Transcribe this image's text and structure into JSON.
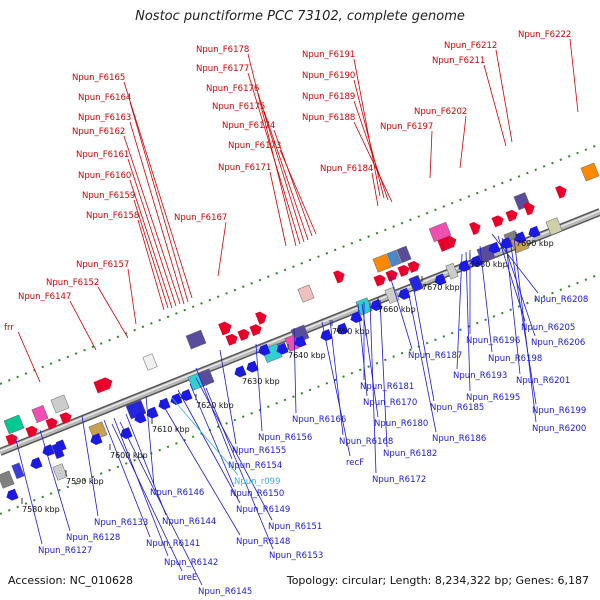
{
  "title": "Nostoc punctiforme PCC 73102, complete genome",
  "footer": {
    "accession": "Accession: NC_010628",
    "topology": "Topology: circular; Length: 8,234,322 bp; Genes: 6,187"
  },
  "colors": {
    "forward_label": "#d40000",
    "reverse_label": "#1a1adb",
    "rna_label": "#34b4e6",
    "backbone": "#9a9a9a",
    "dots": "#2b8a2b"
  },
  "kbp_ticks": [
    "7580 kbp",
    "7590 kbp",
    "7600 kbp",
    "7610 kbp",
    "7620 kbp",
    "7630 kbp",
    "7640 kbp",
    "7650 kbp",
    "7660 kbp",
    "7670 kbp",
    "7680 kbp",
    "7690 kbp"
  ],
  "forward_labels": [
    "Npun_F6222",
    "Npun_F6212",
    "Npun_F6211",
    "Npun_F6202",
    "Npun_F6197",
    "Npun_F6191",
    "Npun_F6190",
    "Npun_F6189",
    "Npun_F6188",
    "Npun_F6184",
    "Npun_F6178",
    "Npun_F6177",
    "Npun_F6176",
    "Npun_F6175",
    "Npun_F6174",
    "Npun_F6173",
    "Npun_F6171",
    "Npun_F6167",
    "Npun_F6165",
    "Npun_F6164",
    "Npun_F6163",
    "Npun_F6162",
    "Npun_F6161",
    "Npun_F6160",
    "Npun_F6159",
    "Npun_F6158",
    "Npun_F6157",
    "Npun_F6152",
    "Npun_F6147",
    "frr"
  ],
  "reverse_labels": [
    "Npun_R6208",
    "Npun_R6205",
    "Npun_R6206",
    "Npun_R6198",
    "Npun_R6196",
    "Npun_R6201",
    "Npun_R6187",
    "Npun_R6193",
    "Npun_R6195",
    "Npun_R6199",
    "Npun_R6200",
    "Npun_R6181",
    "Npun_R6185",
    "Npun_R6170",
    "Npun_R6180",
    "Npun_R6166",
    "Npun_R6168",
    "Npun_R6186",
    "Npun_R6182",
    "recF",
    "Npun_R6156",
    "Npun_R6155",
    "Npun_R6154",
    "Npun_R6172",
    "Npun_R6150",
    "Npun_R6146",
    "Npun_R6149",
    "Npun_R6144",
    "Npun_R6151",
    "Npun_R6133",
    "Npun_R6128",
    "Npun_R6141",
    "Npun_R6148",
    "Npun_R6153",
    "Npun_R6127",
    "Npun_R6142",
    "ureE",
    "Npun_R6145"
  ],
  "rna_labels": [
    "Npun_r099"
  ]
}
